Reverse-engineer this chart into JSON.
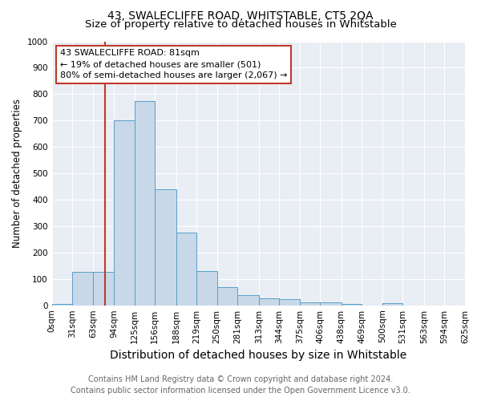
{
  "title": "43, SWALECLIFFE ROAD, WHITSTABLE, CT5 2QA",
  "subtitle": "Size of property relative to detached houses in Whitstable",
  "xlabel": "Distribution of detached houses by size in Whitstable",
  "ylabel": "Number of detached properties",
  "bin_labels": [
    "0sqm",
    "31sqm",
    "63sqm",
    "94sqm",
    "125sqm",
    "156sqm",
    "188sqm",
    "219sqm",
    "250sqm",
    "281sqm",
    "313sqm",
    "344sqm",
    "375sqm",
    "406sqm",
    "438sqm",
    "469sqm",
    "500sqm",
    "531sqm",
    "563sqm",
    "594sqm",
    "625sqm"
  ],
  "bin_edges": [
    0,
    31,
    63,
    94,
    125,
    156,
    188,
    219,
    250,
    281,
    313,
    344,
    375,
    406,
    438,
    469,
    500,
    531,
    563,
    594,
    625
  ],
  "bar_values": [
    5,
    128,
    128,
    700,
    775,
    440,
    275,
    130,
    70,
    40,
    25,
    22,
    12,
    12,
    6,
    0,
    8,
    0,
    0,
    0
  ],
  "bar_color": "#c8d8e8",
  "bar_edgecolor": "#5a9ec9",
  "property_size": 81,
  "vline_color": "#c0392b",
  "annotation_line1": "43 SWALECLIFFE ROAD: 81sqm",
  "annotation_line2": "← 19% of detached houses are smaller (501)",
  "annotation_line3": "80% of semi-detached houses are larger (2,067) →",
  "annotation_box_color": "#c0392b",
  "ylim": [
    0,
    1000
  ],
  "yticks": [
    0,
    100,
    200,
    300,
    400,
    500,
    600,
    700,
    800,
    900,
    1000
  ],
  "background_color": "#e8eef4",
  "footer_line1": "Contains HM Land Registry data © Crown copyright and database right 2024.",
  "footer_line2": "Contains public sector information licensed under the Open Government Licence v3.0.",
  "title_fontsize": 10,
  "subtitle_fontsize": 9.5,
  "xlabel_fontsize": 10,
  "ylabel_fontsize": 8.5,
  "tick_fontsize": 7.5,
  "footer_fontsize": 7,
  "annotation_fontsize": 8
}
